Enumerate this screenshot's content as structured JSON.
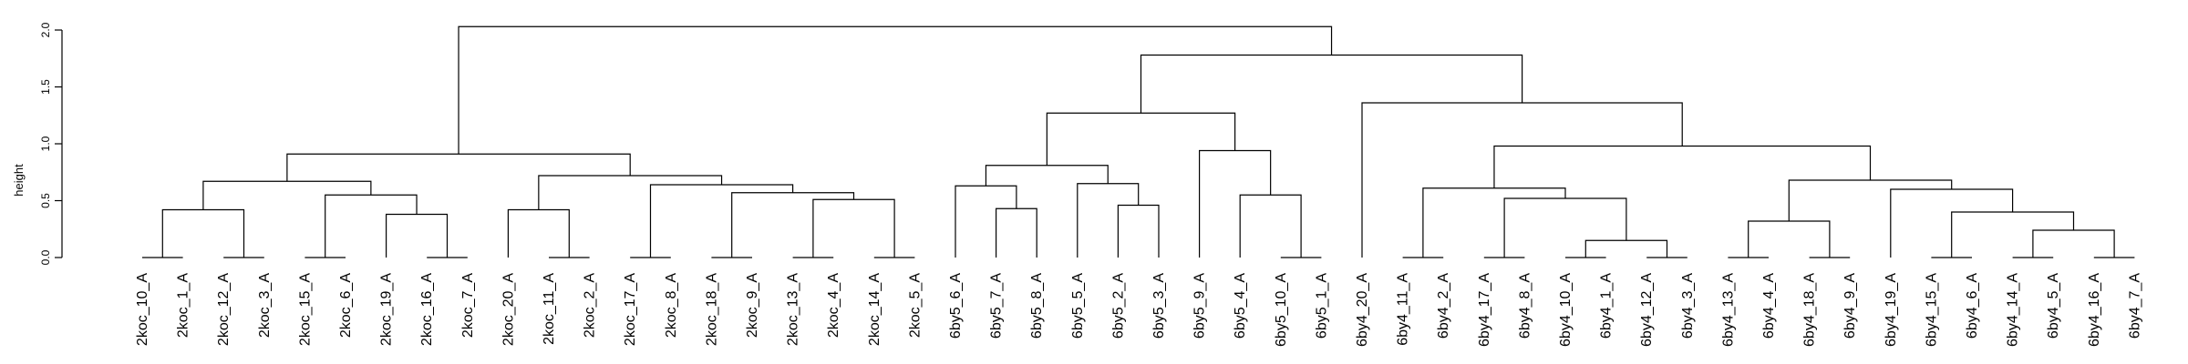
{
  "chart_data": {
    "type": "dendrogram",
    "ylabel": "height",
    "ylim": [
      0,
      2.05
    ],
    "yticks": [
      "0.0",
      "0.5",
      "1.0",
      "1.5",
      "2.0"
    ],
    "leaves": [
      "2koc_10_A",
      "2koc_1_A",
      "2koc_12_A",
      "2koc_3_A",
      "2koc_15_A",
      "2koc_6_A",
      "2koc_19_A",
      "2koc_16_A",
      "2koc_7_A",
      "2koc_20_A",
      "2koc_11_A",
      "2koc_2_A",
      "2koc_17_A",
      "2koc_8_A",
      "2koc_18_A",
      "2koc_9_A",
      "2koc_13_A",
      "2koc_4_A",
      "2koc_14_A",
      "2koc_5_A",
      "6by5_6_A",
      "6by5_7_A",
      "6by5_8_A",
      "6by5_5_A",
      "6by5_2_A",
      "6by5_3_A",
      "6by5_9_A",
      "6by5_4_A",
      "6by5_10_A",
      "6by5_1_A",
      "6by4_20_A",
      "6by4_11_A",
      "6by4_2_A",
      "6by4_17_A",
      "6by4_8_A",
      "6by4_10_A",
      "6by4_1_A",
      "6by4_12_A",
      "6by4_3_A",
      "6by4_13_A",
      "6by4_4_A",
      "6by4_18_A",
      "6by4_9_A",
      "6by4_19_A",
      "6by4_15_A",
      "6by4_6_A",
      "6by4_14_A",
      "6by4_5_A",
      "6by4_16_A",
      "6by4_7_A"
    ],
    "merges": [
      {
        "left": "L0",
        "right": "L1",
        "height": 0.0
      },
      {
        "left": "L2",
        "right": "L3",
        "height": 0.0
      },
      {
        "left": "L4",
        "right": "L5",
        "height": 0.0
      },
      {
        "left": "L7",
        "right": "L8",
        "height": 0.0
      },
      {
        "left": "L10",
        "right": "L11",
        "height": 0.0
      },
      {
        "left": "L12",
        "right": "L13",
        "height": 0.0
      },
      {
        "left": "L14",
        "right": "L15",
        "height": 0.0
      },
      {
        "left": "L16",
        "right": "L17",
        "height": 0.0
      },
      {
        "left": "L18",
        "right": "L19",
        "height": 0.0
      },
      {
        "left": "L28",
        "right": "L29",
        "height": 0.0
      },
      {
        "left": "L31",
        "right": "L32",
        "height": 0.0
      },
      {
        "left": "L33",
        "right": "L34",
        "height": 0.0
      },
      {
        "left": "L35",
        "right": "L36",
        "height": 0.0
      },
      {
        "left": "L39",
        "right": "L40",
        "height": 0.0
      },
      {
        "left": "L41",
        "right": "L42",
        "height": 0.0
      },
      {
        "left": "L44",
        "right": "L45",
        "height": 0.0
      },
      {
        "left": "L46",
        "right": "L47",
        "height": 0.0
      },
      {
        "left": "L48",
        "right": "L49",
        "height": 0.0
      },
      {
        "left": "L37",
        "right": "L38",
        "height": 0.0
      },
      {
        "left": "M0",
        "right": "M1",
        "height": 0.42
      },
      {
        "left": "L6",
        "right": "M3",
        "height": 0.38
      },
      {
        "left": "M2",
        "right": "M20",
        "height": 0.55
      },
      {
        "left": "M19",
        "right": "M21",
        "height": 0.67
      },
      {
        "left": "L9",
        "right": "M4",
        "height": 0.42
      },
      {
        "left": "M7",
        "right": "M8",
        "height": 0.51
      },
      {
        "left": "M6",
        "right": "M24",
        "height": 0.57
      },
      {
        "left": "M5",
        "right": "M25",
        "height": 0.64
      },
      {
        "left": "M23",
        "right": "M26",
        "height": 0.72
      },
      {
        "left": "M22",
        "right": "M27",
        "height": 0.91
      },
      {
        "left": "L21",
        "right": "L22",
        "height": 0.43
      },
      {
        "left": "L20",
        "right": "M29",
        "height": 0.63
      },
      {
        "left": "L24",
        "right": "L25",
        "height": 0.46
      },
      {
        "left": "L23",
        "right": "M31",
        "height": 0.65
      },
      {
        "left": "M30",
        "right": "M32",
        "height": 0.81
      },
      {
        "left": "L27",
        "right": "M9",
        "height": 0.55
      },
      {
        "left": "L26",
        "right": "M34",
        "height": 0.94
      },
      {
        "left": "M33",
        "right": "M35",
        "height": 1.27
      },
      {
        "left": "M12",
        "right": "M18",
        "height": 0.15
      },
      {
        "left": "M11",
        "right": "M37",
        "height": 0.52
      },
      {
        "left": "M10",
        "right": "M38",
        "height": 0.61
      },
      {
        "left": "M13",
        "right": "M14",
        "height": 0.32
      },
      {
        "left": "M16",
        "right": "M17",
        "height": 0.24
      },
      {
        "left": "M15",
        "right": "M41",
        "height": 0.4
      },
      {
        "left": "L43",
        "right": "M42",
        "height": 0.6
      },
      {
        "left": "M40",
        "right": "M43",
        "height": 0.68
      },
      {
        "left": "M39",
        "right": "M44",
        "height": 0.98
      },
      {
        "left": "L30",
        "right": "M45",
        "height": 1.36
      },
      {
        "left": "M36",
        "right": "M46",
        "height": 1.78
      },
      {
        "left": "M28",
        "right": "M47",
        "height": 2.03
      }
    ]
  }
}
